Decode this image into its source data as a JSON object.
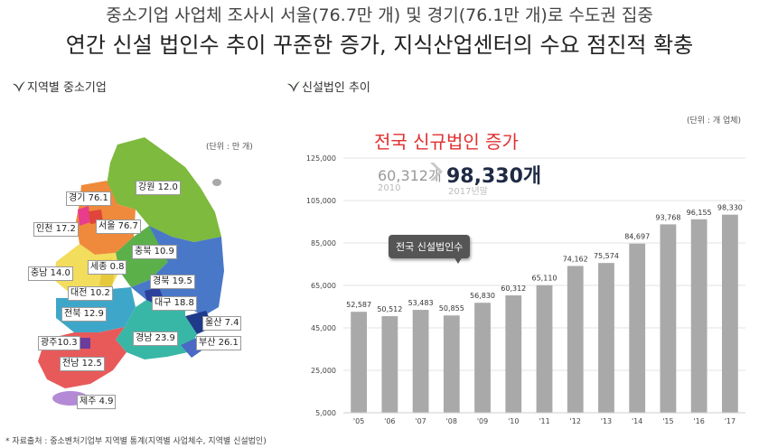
{
  "title": "중소기업 사업체 조사시 서울(76.7만 개) 및 경기(76.1만 개)로 수도권 집중",
  "subtitle": "연간 신설 법인수 추이 꾸준한 증가, 지식산업센터의 수요 점진적 확충",
  "left_panel": {
    "heading": "지역별 중소기업",
    "unit": "(단위 : 만 개)",
    "regions": [
      {
        "label": "강원 12.0",
        "color": "#7dba3d"
      },
      {
        "label": "경기 76.1",
        "color": "#ef8a3c"
      },
      {
        "label": "서울 76.7",
        "color": "#e0443a"
      },
      {
        "label": "인천 17.2",
        "color": "#e83d8c"
      },
      {
        "label": "충북 10.9",
        "color": "#5bb04a"
      },
      {
        "label": "세종 0.8",
        "color": "#f0d24a"
      },
      {
        "label": "충남 14.0",
        "color": "#f2dd5c"
      },
      {
        "label": "대전 10.2",
        "color": "#e6c83c"
      },
      {
        "label": "경북 19.5",
        "color": "#4a78c8"
      },
      {
        "label": "대구 18.8",
        "color": "#2c3f9c"
      },
      {
        "label": "전북 12.9",
        "color": "#3ea7c9"
      },
      {
        "label": "울산 7.4",
        "color": "#1f3a8a"
      },
      {
        "label": "경남 23.9",
        "color": "#39b7a6"
      },
      {
        "label": "광주10.3",
        "color": "#6b3c9c"
      },
      {
        "label": "부산 26.1",
        "color": "#4a69c4"
      },
      {
        "label": "전남 12.5",
        "color": "#e85a5a"
      },
      {
        "label": "제주 4.9",
        "color": "#b48ad6"
      }
    ]
  },
  "right_panel": {
    "heading": "신설법인 추이",
    "unit": "(단위 : 개 업체)",
    "headline": "전국 신규법인 증가",
    "from_value": "60,312개",
    "from_year": "2010",
    "to_value": "98,330개",
    "to_year": "2017년말",
    "callout": "전국 신설법인수"
  },
  "source": "* 자료출처 : 중소벤처기업부 지역별 통계(지역별 사업체수, 지역별 신설법인)",
  "colors": {
    "bar": "#a9a9a9",
    "headline": "#e03030",
    "title_new": "#1f2a44"
  },
  "chart_data": {
    "type": "bar",
    "categories": [
      "'05",
      "'06",
      "'07",
      "'08",
      "'09",
      "'10",
      "'11",
      "'12",
      "'13",
      "'14",
      "'15",
      "'16",
      "'17"
    ],
    "values": [
      52587,
      50512,
      53483,
      50855,
      56830,
      60312,
      65110,
      74162,
      75574,
      84697,
      93768,
      96155,
      98330
    ],
    "value_labels": [
      "52,587",
      "50,512",
      "53,483",
      "50,855",
      "56,830",
      "60,312",
      "65,110",
      "74,162",
      "75,574",
      "84,697",
      "93,768",
      "96,155",
      "98,330"
    ],
    "ylim": [
      5000,
      125000
    ],
    "yticks": [
      5000,
      25000,
      45000,
      65000,
      85000,
      105000,
      125000
    ],
    "ytick_labels": [
      "5,000",
      "25,000",
      "45,000",
      "65,000",
      "85,000",
      "105,000",
      "125,000"
    ],
    "grid": true,
    "xlabel": "",
    "ylabel": ""
  }
}
